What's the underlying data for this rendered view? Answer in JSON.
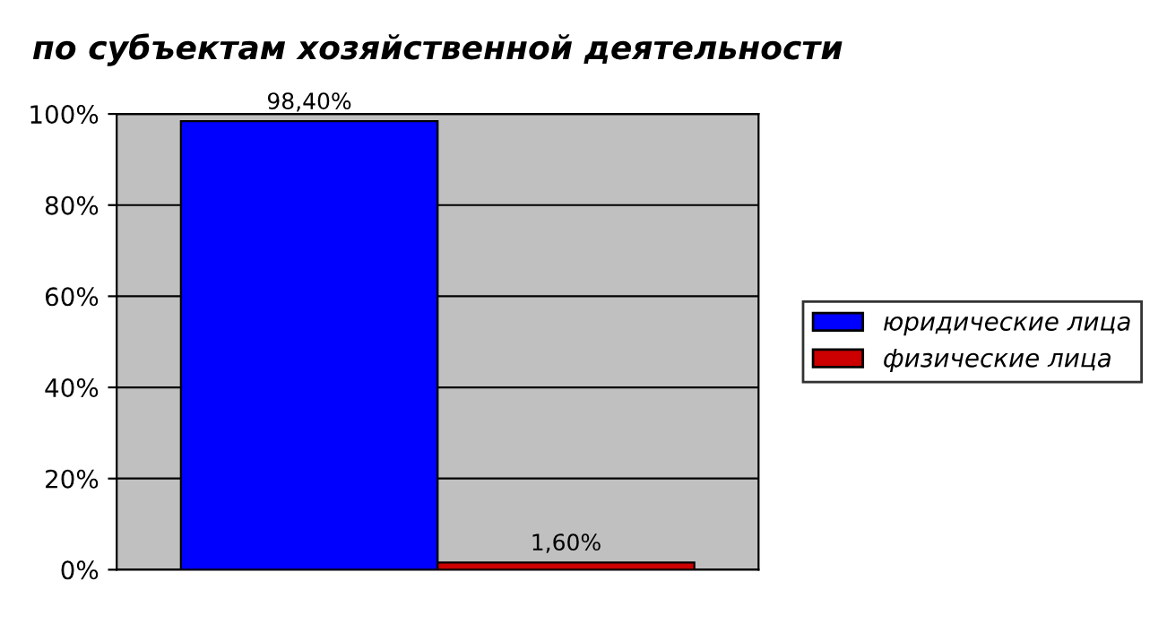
{
  "chart_data": {
    "type": "bar",
    "title": "по субъектам хозяйственной деятельности",
    "categories": [
      null
    ],
    "series": [
      {
        "name": "юридические лица",
        "color": "#0000ff",
        "values": [
          98.4
        ],
        "value_labels": [
          "98,40%"
        ]
      },
      {
        "name": "физические лица",
        "color": "#cc0000",
        "values": [
          1.6
        ],
        "value_labels": [
          "1,60%"
        ]
      }
    ],
    "ylim": [
      0,
      100
    ],
    "yticks": [
      {
        "value": 0,
        "label": "0%"
      },
      {
        "value": 20,
        "label": "20%"
      },
      {
        "value": 40,
        "label": "40%"
      },
      {
        "value": 60,
        "label": "60%"
      },
      {
        "value": 80,
        "label": "80%"
      },
      {
        "value": 100,
        "label": "100%"
      }
    ],
    "grid": "y",
    "legend": "right"
  }
}
